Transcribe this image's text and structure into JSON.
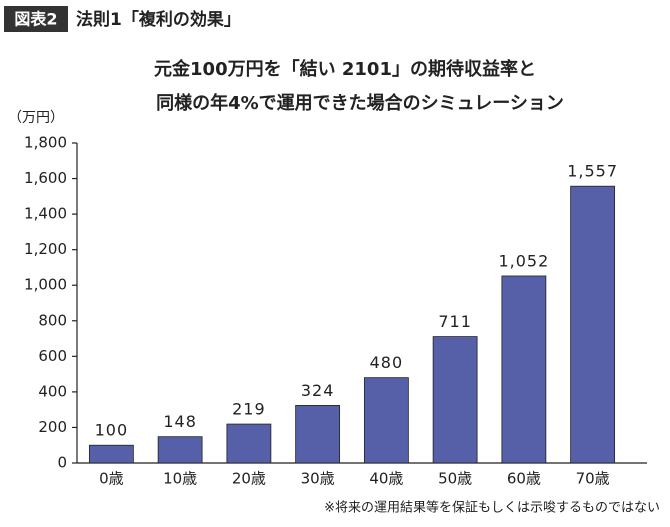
{
  "figure_label": "図表2",
  "heading": "法則1「複利の効果」",
  "chart_data": {
    "type": "bar",
    "title_lines": [
      "元金100万円を「結い 2101」の期待収益率と",
      "同様の年4%で運用できた場合のシミュレーション"
    ],
    "y_unit": "（万円）",
    "categories": [
      "0歳",
      "10歳",
      "20歳",
      "30歳",
      "40歳",
      "50歳",
      "60歳",
      "70歳"
    ],
    "values": [
      100,
      148,
      219,
      324,
      480,
      711,
      1052,
      1557
    ],
    "value_labels": [
      "100",
      "148",
      "219",
      "324",
      "480",
      "711",
      "1,052",
      "1,557"
    ],
    "color": "#5560a8",
    "ylim": [
      0,
      1800
    ],
    "yticks": [
      0,
      200,
      400,
      600,
      800,
      {
        "value": 1000,
        "label": "1,000"
      },
      {
        "value": 1200,
        "label": "1,200"
      },
      {
        "value": 1400,
        "label": "1,400"
      },
      {
        "value": 1600,
        "label": "1,600"
      },
      {
        "value": 1800,
        "label": "1,800"
      }
    ],
    "grid": false,
    "note": "※将来の運用結果等を保証もしくは示唆するものではない"
  }
}
